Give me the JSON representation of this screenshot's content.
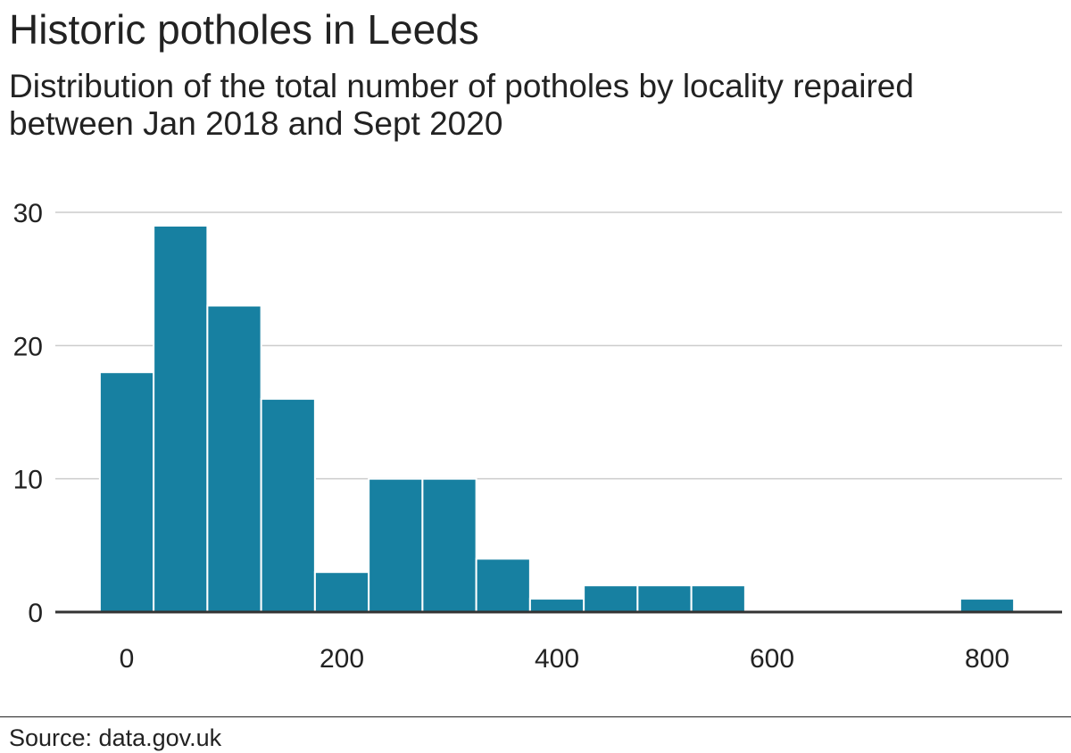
{
  "title": "Historic potholes in Leeds",
  "subtitle": "Distribution of the total number of potholes by locality repaired between Jan 2018 and Sept 2020",
  "source": "Source: data.gov.uk",
  "colors": {
    "bar": "#1780a1",
    "bar_edge": "#ffffff",
    "grid": "#cccccc",
    "baseline": "#333333",
    "text": "#222222"
  },
  "chart_data": {
    "type": "bar",
    "title": "Historic potholes in Leeds",
    "subtitle": "Distribution of the total number of potholes by locality repaired between Jan 2018 and Sept 2020",
    "xlabel": "",
    "ylabel": "",
    "xlim": [
      -25,
      850
    ],
    "ylim": [
      0,
      30
    ],
    "x_ticks": [
      0,
      200,
      400,
      600,
      800
    ],
    "y_ticks": [
      0,
      10,
      20,
      30
    ],
    "grid": true,
    "bins": [
      {
        "x0": -25,
        "x1": 25,
        "value": 18
      },
      {
        "x0": 25,
        "x1": 75,
        "value": 29
      },
      {
        "x0": 75,
        "x1": 125,
        "value": 23
      },
      {
        "x0": 125,
        "x1": 175,
        "value": 16
      },
      {
        "x0": 175,
        "x1": 225,
        "value": 3
      },
      {
        "x0": 225,
        "x1": 275,
        "value": 10
      },
      {
        "x0": 275,
        "x1": 325,
        "value": 10
      },
      {
        "x0": 325,
        "x1": 375,
        "value": 4
      },
      {
        "x0": 375,
        "x1": 425,
        "value": 1
      },
      {
        "x0": 425,
        "x1": 475,
        "value": 2
      },
      {
        "x0": 475,
        "x1": 525,
        "value": 2
      },
      {
        "x0": 525,
        "x1": 575,
        "value": 2
      },
      {
        "x0": 575,
        "x1": 625,
        "value": 0
      },
      {
        "x0": 625,
        "x1": 675,
        "value": 0
      },
      {
        "x0": 675,
        "x1": 725,
        "value": 0
      },
      {
        "x0": 725,
        "x1": 775,
        "value": 0
      },
      {
        "x0": 775,
        "x1": 825,
        "value": 1
      }
    ]
  }
}
